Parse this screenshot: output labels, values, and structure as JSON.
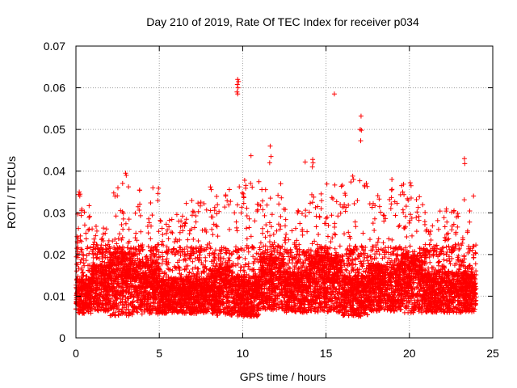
{
  "chart_data": {
    "type": "scatter",
    "title": "Day 210 of 2019, Rate Of TEC Index for receiver p034",
    "xlabel": "GPS time / hours",
    "ylabel": "ROTI / TECUs",
    "xlim": [
      0,
      25
    ],
    "ylim": [
      0,
      0.07
    ],
    "x_ticks": [
      0,
      5,
      10,
      15,
      20,
      25
    ],
    "x_tick_labels": [
      "0",
      "5",
      "10",
      "15",
      "20",
      "25"
    ],
    "y_ticks": [
      0,
      0.01,
      0.02,
      0.03,
      0.04,
      0.05,
      0.06,
      0.07
    ],
    "y_tick_labels": [
      "0",
      "0.01",
      "0.02",
      "0.03",
      "0.04",
      "0.05",
      "0.06",
      "0.07"
    ],
    "grid": true,
    "marker": "+",
    "color": "#ff0000",
    "series": [
      {
        "name": "ROTI",
        "typical_range": [
          0.002,
          0.03
        ],
        "notable_points": [
          {
            "x": 9.7,
            "y": 0.062
          },
          {
            "x": 9.75,
            "y": 0.0615
          },
          {
            "x": 9.68,
            "y": 0.0608
          },
          {
            "x": 9.72,
            "y": 0.06
          },
          {
            "x": 9.66,
            "y": 0.059
          },
          {
            "x": 9.7,
            "y": 0.0585
          },
          {
            "x": 15.5,
            "y": 0.0585
          },
          {
            "x": 17.1,
            "y": 0.0532
          },
          {
            "x": 17.05,
            "y": 0.05
          },
          {
            "x": 17.12,
            "y": 0.0498
          },
          {
            "x": 17.08,
            "y": 0.0473
          },
          {
            "x": 11.65,
            "y": 0.046
          },
          {
            "x": 11.7,
            "y": 0.0435
          },
          {
            "x": 11.62,
            "y": 0.042
          },
          {
            "x": 10.5,
            "y": 0.0437
          },
          {
            "x": 14.2,
            "y": 0.0428
          },
          {
            "x": 14.22,
            "y": 0.042
          },
          {
            "x": 14.18,
            "y": 0.041
          },
          {
            "x": 13.75,
            "y": 0.0422
          },
          {
            "x": 23.3,
            "y": 0.043
          },
          {
            "x": 23.32,
            "y": 0.0418
          },
          {
            "x": 2.98,
            "y": 0.0395
          },
          {
            "x": 3.02,
            "y": 0.039
          },
          {
            "x": 16.6,
            "y": 0.0388
          },
          {
            "x": 16.65,
            "y": 0.038
          },
          {
            "x": 18.95,
            "y": 0.038
          },
          {
            "x": 19.6,
            "y": 0.035
          },
          {
            "x": 0.2,
            "y": 0.035
          },
          {
            "x": 0.25,
            "y": 0.0345
          },
          {
            "x": 20.05,
            "y": 0.0372
          },
          {
            "x": 20.1,
            "y": 0.0365
          }
        ],
        "clusters": [
          {
            "x_start": 0.0,
            "x_end": 0.9,
            "y_low": 0.004,
            "y_mid": 0.01,
            "y_high": 0.035
          },
          {
            "x_start": 0.9,
            "x_end": 2.0,
            "y_low": 0.004,
            "y_mid": 0.012,
            "y_high": 0.027
          },
          {
            "x_start": 2.0,
            "x_end": 3.4,
            "y_low": 0.002,
            "y_mid": 0.013,
            "y_high": 0.039
          },
          {
            "x_start": 3.4,
            "x_end": 5.0,
            "y_low": 0.003,
            "y_mid": 0.012,
            "y_high": 0.036
          },
          {
            "x_start": 5.0,
            "x_end": 6.5,
            "y_low": 0.004,
            "y_mid": 0.01,
            "y_high": 0.03
          },
          {
            "x_start": 6.5,
            "x_end": 8.0,
            "y_low": 0.004,
            "y_mid": 0.01,
            "y_high": 0.033
          },
          {
            "x_start": 8.0,
            "x_end": 9.5,
            "y_low": 0.003,
            "y_mid": 0.011,
            "y_high": 0.037
          },
          {
            "x_start": 9.5,
            "x_end": 11.0,
            "y_low": 0.003,
            "y_mid": 0.01,
            "y_high": 0.038
          },
          {
            "x_start": 11.0,
            "x_end": 12.5,
            "y_low": 0.004,
            "y_mid": 0.013,
            "y_high": 0.037
          },
          {
            "x_start": 12.5,
            "x_end": 14.0,
            "y_low": 0.004,
            "y_mid": 0.011,
            "y_high": 0.032
          },
          {
            "x_start": 14.0,
            "x_end": 16.0,
            "y_low": 0.003,
            "y_mid": 0.013,
            "y_high": 0.037
          },
          {
            "x_start": 16.0,
            "x_end": 17.5,
            "y_low": 0.003,
            "y_mid": 0.01,
            "y_high": 0.038
          },
          {
            "x_start": 17.5,
            "x_end": 19.5,
            "y_low": 0.004,
            "y_mid": 0.012,
            "y_high": 0.036
          },
          {
            "x_start": 19.5,
            "x_end": 21.0,
            "y_low": 0.003,
            "y_mid": 0.013,
            "y_high": 0.037
          },
          {
            "x_start": 21.0,
            "x_end": 22.5,
            "y_low": 0.004,
            "y_mid": 0.011,
            "y_high": 0.031
          },
          {
            "x_start": 22.5,
            "x_end": 24.0,
            "y_low": 0.004,
            "y_mid": 0.011,
            "y_high": 0.035
          }
        ]
      }
    ]
  }
}
